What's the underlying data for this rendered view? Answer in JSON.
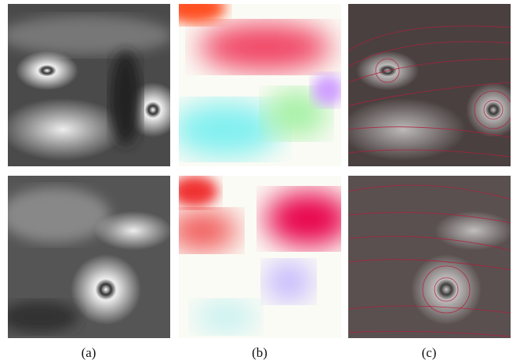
{
  "figure": {
    "panel_labels": [
      "(a)",
      "(b)",
      "(c)"
    ]
  }
}
